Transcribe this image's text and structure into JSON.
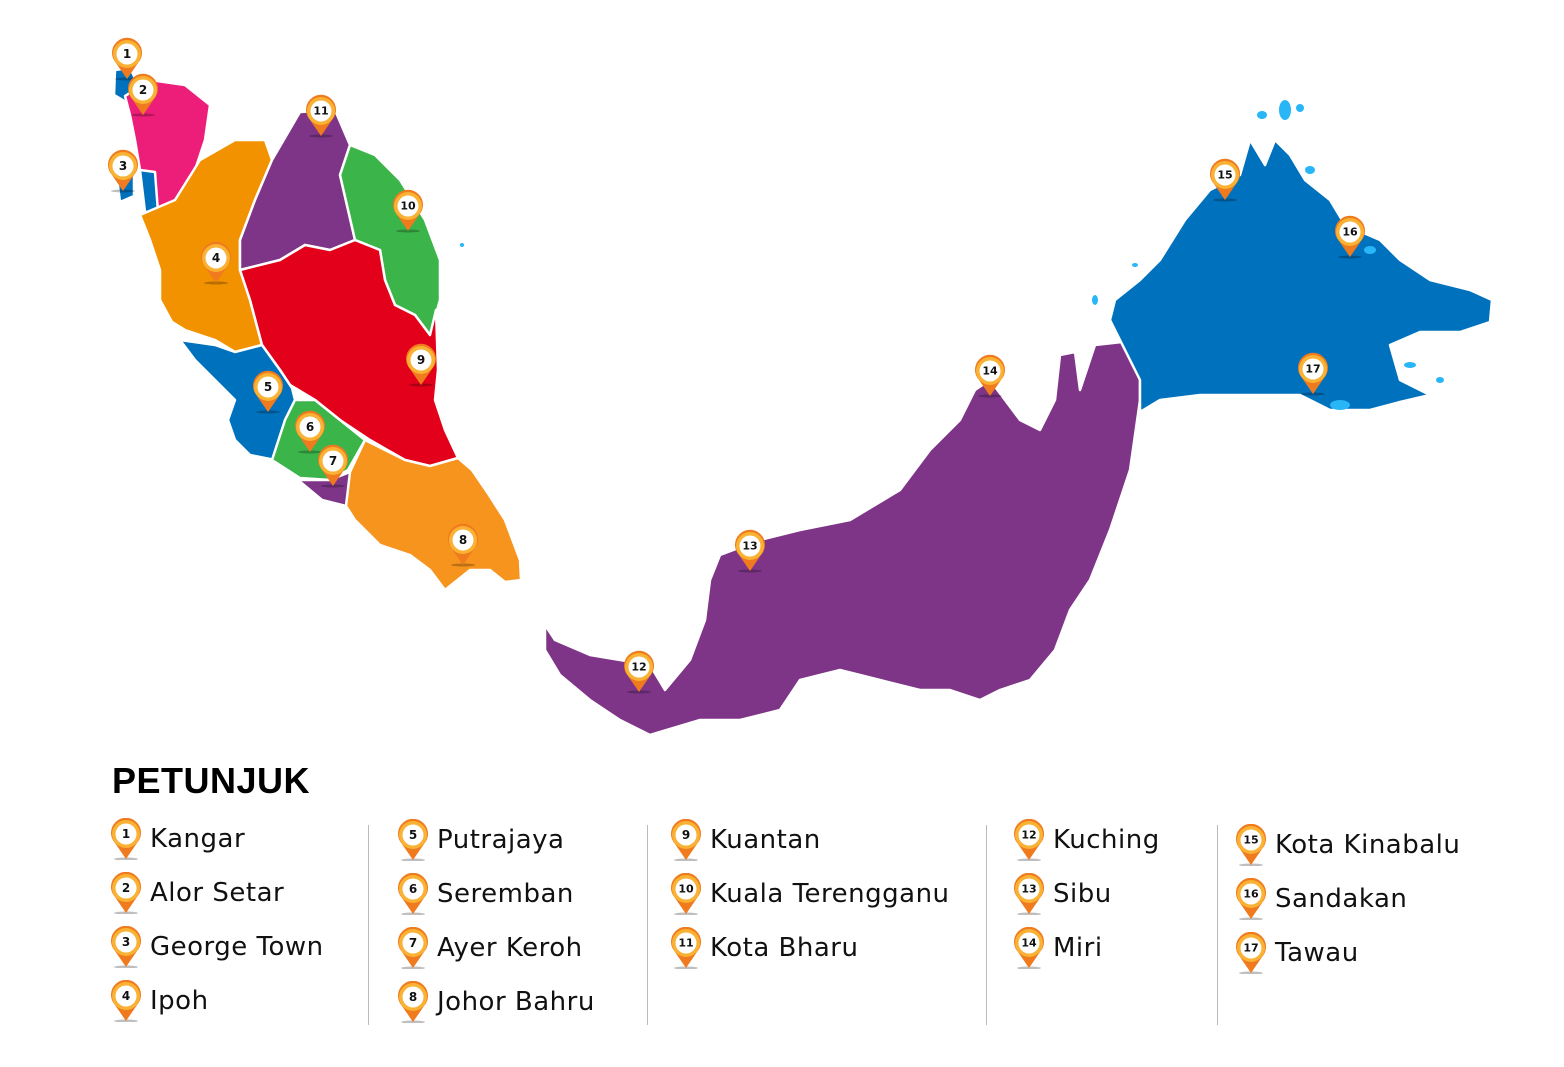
{
  "map": {
    "colors": {
      "perlis": "#0071BD",
      "kedah": "#EC1E79",
      "penang": "#0071BD",
      "perak": "#F39200",
      "kelantan": "#7E3587",
      "terengganu": "#3BB44A",
      "pahang": "#E2001A",
      "selangor": "#0071BD",
      "negeri_sembilan": "#3BB44A",
      "melaka": "#7E3587",
      "johor": "#F7941D",
      "sarawak": "#7E3587",
      "sabah": "#0071BD",
      "islands": "#29B6F6",
      "pin": "#F07A1E",
      "pin_ring": "#F9B233"
    },
    "pin_icon": "map-marker-icon"
  },
  "legend": {
    "title": "PETUNJUK",
    "columns": [
      [
        {
          "num": "1",
          "label": "Kangar"
        },
        {
          "num": "2",
          "label": "Alor Setar"
        },
        {
          "num": "3",
          "label": "George Town"
        },
        {
          "num": "4",
          "label": "Ipoh"
        }
      ],
      [
        {
          "num": "5",
          "label": "Putrajaya"
        },
        {
          "num": "6",
          "label": "Seremban"
        },
        {
          "num": "7",
          "label": "Ayer Keroh"
        },
        {
          "num": "8",
          "label": "Johor Bahru"
        }
      ],
      [
        {
          "num": "9",
          "label": "Kuantan"
        },
        {
          "num": "10",
          "label": "Kuala Terengganu"
        },
        {
          "num": "11",
          "label": "Kota Bharu"
        }
      ],
      [
        {
          "num": "12",
          "label": "Kuching"
        },
        {
          "num": "13",
          "label": "Sibu"
        },
        {
          "num": "14",
          "label": "Miri"
        }
      ],
      [
        {
          "num": "15",
          "label": "Kota Kinabalu"
        },
        {
          "num": "16",
          "label": "Sandakan"
        },
        {
          "num": "17",
          "label": "Tawau"
        }
      ]
    ]
  }
}
